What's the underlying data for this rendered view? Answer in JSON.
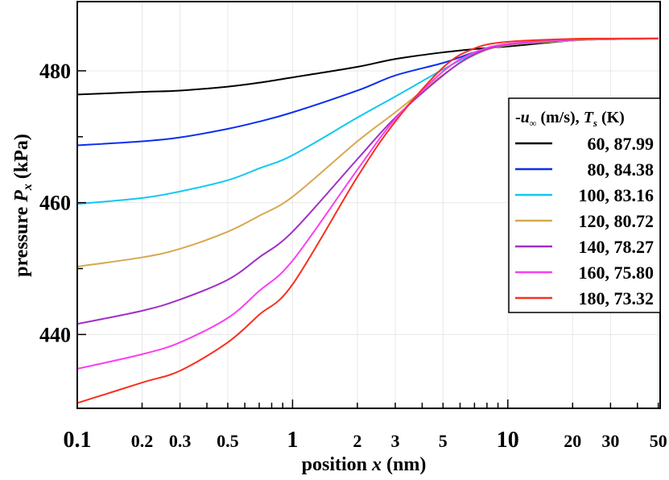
{
  "chart_data": {
    "type": "line",
    "xlabel": "position x (nm)",
    "xlabel_parts": {
      "pre": "position ",
      "var": "x",
      "post": " (nm)"
    },
    "ylabel": "pressure P_x (kPa)",
    "ylabel_parts": {
      "pre": "pressure ",
      "var": "P",
      "sub": "x",
      "post": " (kPa)"
    },
    "x_scale": "log",
    "xlim": [
      0.1,
      51
    ],
    "ylim": [
      428.8,
      490.5
    ],
    "x_ticks": [
      {
        "value": 0.1,
        "label": "0.1",
        "major": true
      },
      {
        "value": 0.2,
        "label": "0.2"
      },
      {
        "value": 0.3,
        "label": "0.3"
      },
      {
        "value": 0.5,
        "label": "0.5"
      },
      {
        "value": 1,
        "label": "1",
        "major": true
      },
      {
        "value": 2,
        "label": "2"
      },
      {
        "value": 3,
        "label": "3"
      },
      {
        "value": 5,
        "label": "5"
      },
      {
        "value": 10,
        "label": "10",
        "major": true
      },
      {
        "value": 20,
        "label": "20"
      },
      {
        "value": 30,
        "label": "30"
      },
      {
        "value": 50,
        "label": "50"
      }
    ],
    "y_ticks": [
      {
        "value": 440,
        "label": "440"
      },
      {
        "value": 460,
        "label": "460"
      },
      {
        "value": 480,
        "label": "480"
      }
    ],
    "y_minor_ticks": [
      450,
      470
    ],
    "grid": true,
    "legend": {
      "placement": "right",
      "title_parts": {
        "pre": "-",
        "var": "u",
        "sub": "∞",
        "mid": " (m/s), ",
        "var2": "T",
        "sub2": "s",
        "post": " (K)"
      }
    },
    "x": [
      0.1,
      0.2,
      0.3,
      0.5,
      0.7,
      1,
      2,
      3,
      5,
      7,
      10,
      20,
      30,
      50
    ],
    "series": [
      {
        "name": "60, 87.99",
        "color": "#000000",
        "values": [
          476.4,
          476.8,
          477.0,
          477.6,
          478.2,
          479.0,
          480.6,
          481.8,
          482.8,
          483.3,
          483.7,
          484.6,
          484.8,
          484.9
        ]
      },
      {
        "name": "80, 84.38",
        "color": "#0a2ff0",
        "values": [
          468.7,
          469.3,
          469.9,
          471.2,
          472.3,
          473.7,
          477.0,
          479.3,
          481.2,
          482.8,
          484.0,
          484.7,
          484.85,
          484.9
        ]
      },
      {
        "name": "100, 83.16",
        "color": "#10c8f0",
        "values": [
          459.8,
          460.7,
          461.7,
          463.4,
          465.2,
          467.2,
          472.9,
          476.1,
          480.2,
          482.6,
          483.9,
          484.6,
          484.8,
          484.9
        ]
      },
      {
        "name": "120, 80.72",
        "color": "#d8a850",
        "values": [
          450.3,
          451.7,
          453.0,
          455.6,
          458.0,
          460.9,
          469.3,
          473.7,
          479.4,
          482.4,
          483.9,
          484.6,
          484.8,
          484.9
        ]
      },
      {
        "name": "140, 78.27",
        "color": "#a030c8",
        "values": [
          441.6,
          443.6,
          445.3,
          448.3,
          451.7,
          455.6,
          466.6,
          472.9,
          479.3,
          482.5,
          484.0,
          484.7,
          484.85,
          484.9
        ]
      },
      {
        "name": "160, 75.80",
        "color": "#f840f0",
        "values": [
          434.8,
          437.0,
          438.8,
          442.5,
          446.6,
          451.2,
          465.0,
          472.7,
          479.9,
          482.8,
          484.1,
          484.75,
          484.85,
          484.9
        ]
      },
      {
        "name": "180, 73.32",
        "color": "#f83020",
        "values": [
          429.6,
          432.7,
          434.5,
          438.8,
          443.0,
          447.6,
          463.9,
          472.3,
          480.5,
          483.4,
          484.4,
          484.85,
          484.9,
          484.9
        ]
      }
    ]
  }
}
